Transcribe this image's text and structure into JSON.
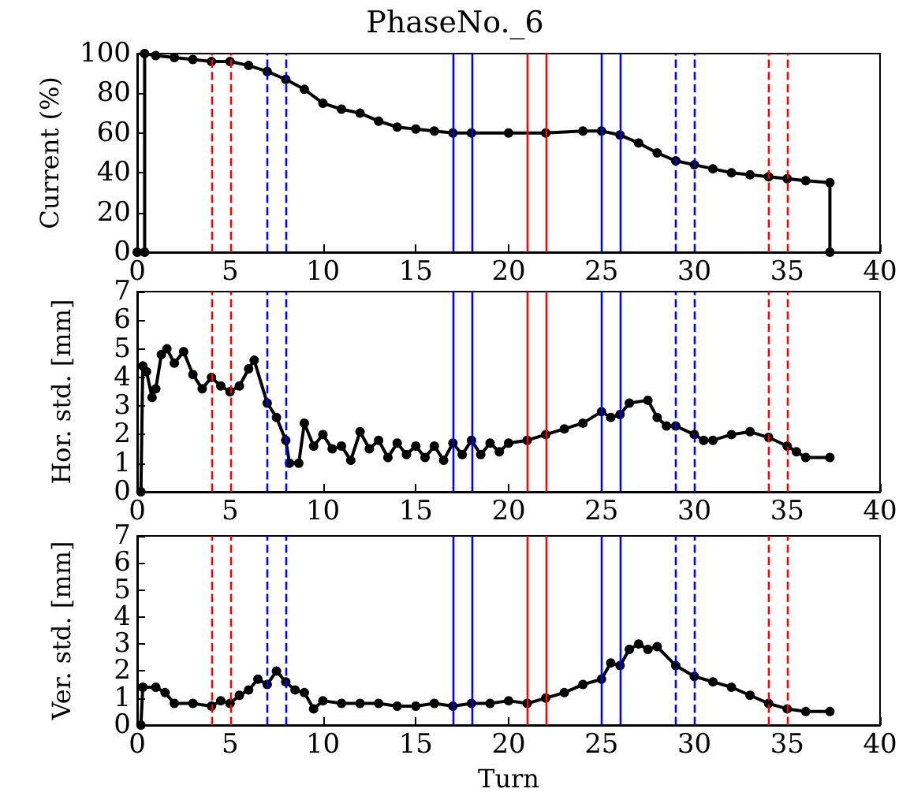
{
  "chart_data": [
    {
      "type": "line",
      "title": "PhaseNo._6",
      "ylabel": "Current (%)",
      "xlim": [
        0,
        40
      ],
      "xticks": [
        0,
        5,
        10,
        15,
        20,
        25,
        30,
        35,
        40
      ],
      "ylim": [
        0,
        100
      ],
      "yticks": [
        0,
        20,
        40,
        60,
        80,
        100
      ],
      "marker": "circle",
      "line_style": "solid",
      "series": [
        {
          "color": "#000000",
          "x": [
            0,
            0.4,
            0.4,
            1,
            2,
            3,
            4,
            5,
            6,
            7,
            8,
            9,
            10,
            11,
            12,
            13,
            14,
            15,
            16,
            17,
            18,
            20,
            22,
            24,
            25,
            26,
            27,
            28,
            29,
            30,
            31,
            32,
            33,
            34,
            35,
            36,
            37.3,
            37.3
          ],
          "values": [
            0,
            0,
            100,
            99,
            98,
            97,
            96,
            96,
            94,
            91,
            87,
            82,
            75,
            72,
            70,
            66,
            63,
            62,
            61,
            60,
            60,
            60,
            60,
            61,
            61,
            59,
            55,
            50,
            46,
            44,
            42,
            40,
            39,
            38,
            37,
            36,
            35,
            0
          ]
        }
      ],
      "ref_lines": [
        {
          "axis": "x",
          "value": 4,
          "color": "#ff0000",
          "line_style": "dashed"
        },
        {
          "axis": "x",
          "value": 5,
          "color": "#ff0000",
          "line_style": "dashed"
        },
        {
          "axis": "x",
          "value": 7,
          "color": "#0000ff",
          "line_style": "dashed"
        },
        {
          "axis": "x",
          "value": 8,
          "color": "#0000ff",
          "line_style": "dashed"
        },
        {
          "axis": "x",
          "value": 17,
          "color": "#0000ff",
          "line_style": "solid"
        },
        {
          "axis": "x",
          "value": 18,
          "color": "#0000ff",
          "line_style": "solid"
        },
        {
          "axis": "x",
          "value": 21,
          "color": "#ff0000",
          "line_style": "solid"
        },
        {
          "axis": "x",
          "value": 22,
          "color": "#ff0000",
          "line_style": "solid"
        },
        {
          "axis": "x",
          "value": 25,
          "color": "#0000ff",
          "line_style": "solid"
        },
        {
          "axis": "x",
          "value": 26,
          "color": "#0000ff",
          "line_style": "solid"
        },
        {
          "axis": "x",
          "value": 29,
          "color": "#0000ff",
          "line_style": "dashed"
        },
        {
          "axis": "x",
          "value": 30,
          "color": "#0000ff",
          "line_style": "dashed"
        },
        {
          "axis": "x",
          "value": 34,
          "color": "#ff0000",
          "line_style": "dashed"
        },
        {
          "axis": "x",
          "value": 35,
          "color": "#ff0000",
          "line_style": "dashed"
        }
      ]
    },
    {
      "type": "line",
      "ylabel": "Hor. std. [mm]",
      "xlim": [
        0,
        40
      ],
      "xticks": [
        0,
        5,
        10,
        15,
        20,
        25,
        30,
        35,
        40
      ],
      "ylim": [
        0,
        7
      ],
      "yticks": [
        0,
        1,
        2,
        3,
        4,
        5,
        6,
        7
      ],
      "marker": "circle",
      "line_style": "solid",
      "series": [
        {
          "color": "#000000",
          "x": [
            0.2,
            0.3,
            0.5,
            0.8,
            1,
            1.3,
            1.6,
            2,
            2.5,
            3,
            3.5,
            4,
            4.5,
            5,
            5.5,
            6,
            6.3,
            7,
            7.5,
            8,
            8.2,
            8.7,
            9,
            9.5,
            10,
            10.5,
            11,
            11.5,
            12,
            12.5,
            13,
            13.5,
            14,
            14.5,
            15,
            15.5,
            16,
            16.5,
            17,
            17.5,
            18,
            18.5,
            19,
            19.5,
            20,
            21,
            22,
            23,
            24,
            25,
            25.5,
            26,
            26.5,
            27.5,
            28,
            28.5,
            29,
            30,
            30.5,
            31,
            32,
            33,
            34,
            35,
            35.5,
            36,
            37.3
          ],
          "values": [
            0,
            4.4,
            4.2,
            3.3,
            3.6,
            4.8,
            5.0,
            4.5,
            4.9,
            4.1,
            3.6,
            4.0,
            3.7,
            3.5,
            3.7,
            4.3,
            4.6,
            3.1,
            2.6,
            1.8,
            1.0,
            1.0,
            2.4,
            1.6,
            2.0,
            1.5,
            1.6,
            1.1,
            2.1,
            1.5,
            1.8,
            1.2,
            1.7,
            1.3,
            1.6,
            1.2,
            1.6,
            1.1,
            1.7,
            1.3,
            1.8,
            1.3,
            1.7,
            1.4,
            1.7,
            1.8,
            2.0,
            2.2,
            2.4,
            2.8,
            2.6,
            2.7,
            3.1,
            3.2,
            2.6,
            2.3,
            2.3,
            2.0,
            1.8,
            1.8,
            2.0,
            2.1,
            1.9,
            1.6,
            1.4,
            1.2,
            1.2
          ]
        }
      ],
      "ref_lines": [
        {
          "axis": "x",
          "value": 4,
          "color": "#ff0000",
          "line_style": "dashed"
        },
        {
          "axis": "x",
          "value": 5,
          "color": "#ff0000",
          "line_style": "dashed"
        },
        {
          "axis": "x",
          "value": 7,
          "color": "#0000ff",
          "line_style": "dashed"
        },
        {
          "axis": "x",
          "value": 8,
          "color": "#0000ff",
          "line_style": "dashed"
        },
        {
          "axis": "x",
          "value": 17,
          "color": "#0000ff",
          "line_style": "solid"
        },
        {
          "axis": "x",
          "value": 18,
          "color": "#0000ff",
          "line_style": "solid"
        },
        {
          "axis": "x",
          "value": 21,
          "color": "#ff0000",
          "line_style": "solid"
        },
        {
          "axis": "x",
          "value": 22,
          "color": "#ff0000",
          "line_style": "solid"
        },
        {
          "axis": "x",
          "value": 25,
          "color": "#0000ff",
          "line_style": "solid"
        },
        {
          "axis": "x",
          "value": 26,
          "color": "#0000ff",
          "line_style": "solid"
        },
        {
          "axis": "x",
          "value": 29,
          "color": "#0000ff",
          "line_style": "dashed"
        },
        {
          "axis": "x",
          "value": 30,
          "color": "#0000ff",
          "line_style": "dashed"
        },
        {
          "axis": "x",
          "value": 34,
          "color": "#ff0000",
          "line_style": "dashed"
        },
        {
          "axis": "x",
          "value": 35,
          "color": "#ff0000",
          "line_style": "dashed"
        }
      ]
    },
    {
      "type": "line",
      "xlabel": "Turn",
      "ylabel": "Ver. std. [mm]",
      "xlim": [
        0,
        40
      ],
      "xticks": [
        0,
        5,
        10,
        15,
        20,
        25,
        30,
        35,
        40
      ],
      "ylim": [
        0,
        7
      ],
      "yticks": [
        0,
        1,
        2,
        3,
        4,
        5,
        6,
        7
      ],
      "marker": "circle",
      "line_style": "solid",
      "series": [
        {
          "color": "#000000",
          "x": [
            0.2,
            0.3,
            1,
            1.5,
            2,
            3,
            4,
            4.5,
            5,
            5.5,
            6,
            6.5,
            7,
            7.5,
            8,
            8.5,
            9,
            9.5,
            10,
            11,
            12,
            13,
            14,
            15,
            16,
            17,
            18,
            19,
            20,
            21,
            22,
            23,
            24,
            25,
            25.5,
            26,
            26.5,
            27,
            27.5,
            28,
            29,
            30,
            31,
            32,
            33,
            34,
            35,
            36,
            37.3
          ],
          "values": [
            0,
            1.4,
            1.4,
            1.2,
            0.8,
            0.8,
            0.7,
            0.9,
            0.8,
            1.1,
            1.3,
            1.7,
            1.5,
            2.0,
            1.6,
            1.3,
            1.2,
            0.6,
            0.9,
            0.8,
            0.8,
            0.8,
            0.7,
            0.7,
            0.8,
            0.7,
            0.8,
            0.8,
            0.9,
            0.8,
            1.0,
            1.2,
            1.5,
            1.7,
            2.3,
            2.2,
            2.8,
            3.0,
            2.8,
            2.9,
            2.2,
            1.8,
            1.6,
            1.4,
            1.1,
            0.8,
            0.6,
            0.5,
            0.5
          ]
        }
      ],
      "ref_lines": [
        {
          "axis": "x",
          "value": 4,
          "color": "#ff0000",
          "line_style": "dashed"
        },
        {
          "axis": "x",
          "value": 5,
          "color": "#ff0000",
          "line_style": "dashed"
        },
        {
          "axis": "x",
          "value": 7,
          "color": "#0000ff",
          "line_style": "dashed"
        },
        {
          "axis": "x",
          "value": 8,
          "color": "#0000ff",
          "line_style": "dashed"
        },
        {
          "axis": "x",
          "value": 17,
          "color": "#0000ff",
          "line_style": "solid"
        },
        {
          "axis": "x",
          "value": 18,
          "color": "#0000ff",
          "line_style": "solid"
        },
        {
          "axis": "x",
          "value": 21,
          "color": "#ff0000",
          "line_style": "solid"
        },
        {
          "axis": "x",
          "value": 22,
          "color": "#ff0000",
          "line_style": "solid"
        },
        {
          "axis": "x",
          "value": 25,
          "color": "#0000ff",
          "line_style": "solid"
        },
        {
          "axis": "x",
          "value": 26,
          "color": "#0000ff",
          "line_style": "solid"
        },
        {
          "axis": "x",
          "value": 29,
          "color": "#0000ff",
          "line_style": "dashed"
        },
        {
          "axis": "x",
          "value": 30,
          "color": "#0000ff",
          "line_style": "dashed"
        },
        {
          "axis": "x",
          "value": 34,
          "color": "#ff0000",
          "line_style": "dashed"
        },
        {
          "axis": "x",
          "value": 35,
          "color": "#ff0000",
          "line_style": "dashed"
        }
      ]
    }
  ]
}
